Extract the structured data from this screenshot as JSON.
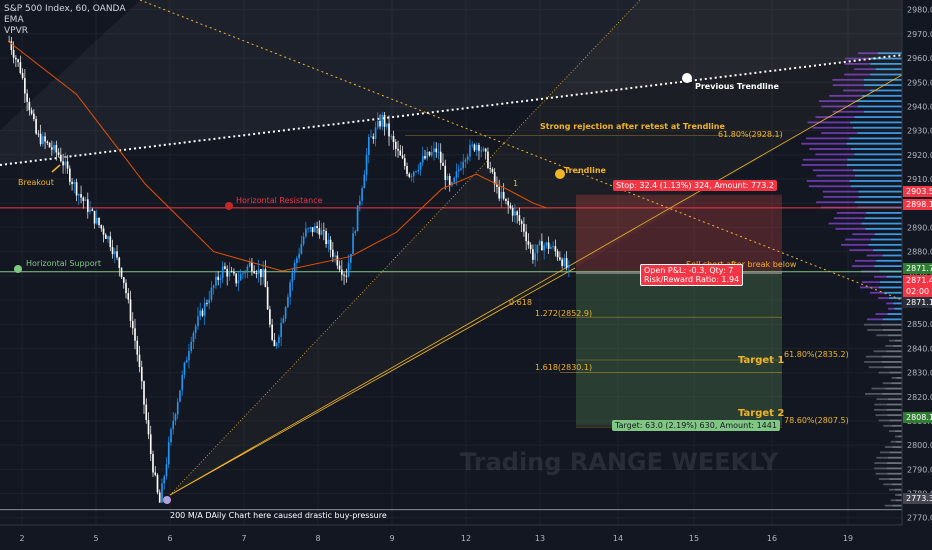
{
  "header": {
    "symbol": "S&P 500 Index, 60, OANDA",
    "indicator_1": "EMA",
    "indicator_2": "VPVR"
  },
  "watermark": "Trading RANGE WEEKLY",
  "annotations": {
    "breakout": "Breakout",
    "horizontal_support": "Horizontal Support",
    "horizontal_resistance": "Horizontal Resistance",
    "strong_rejection": "Strong rejection after retest at Trendline",
    "trendline": "Trendline",
    "previous_trendline": "Previous Trendline",
    "bottom_note": "200 M/A DAily Chart here caused drastic buy-pressure",
    "fib_0618": "0.618",
    "fib_1272": "1.272(2852.9)",
    "fib_1618": "1.618(2830.1)",
    "fib_6180_top": "61.80%(2928.1)",
    "fib_6180_mid": "61.80%(2835.2)",
    "fib_7860": "78.60%(2807.5)",
    "target_1": "Target 1",
    "target_2": "Target 2",
    "stop_box": "Stop: 32.4 (1.13%) 324, Amount: 773.2",
    "open_pl": "Open P&L: -0.3, Qty: 7",
    "risk_reward": "Risk/Reward Ratio: 1.94",
    "target_box": "Target: 63.0 (2.19%) 630, Amount: 1441",
    "short_note": "Sell short after break below"
  },
  "price_tags": {
    "p1": "2903.5",
    "p2": "2898.1",
    "p3": "2871.7",
    "p4": "2871.4",
    "p5": "02:00",
    "p6": "2871.1",
    "p7": "2808.1",
    "p8": "2773.3"
  },
  "colors": {
    "background": "#131722",
    "up_candle": "#2196f3",
    "down_candle": "#ffffff",
    "ema": "#e65100",
    "resistance": "#f23645",
    "support": "#81c784",
    "fib": "#f0b429",
    "stop_zone": "#8b3a3a",
    "target_zone": "#3b5a3b"
  },
  "chart_data": {
    "type": "candlestick",
    "title": "S&P 500 Index, 60, OANDA",
    "x_ticks": [
      "2",
      "5",
      "6",
      "7",
      "8",
      "9",
      "12",
      "13",
      "14",
      "15",
      "16",
      "19"
    ],
    "y_ticks": [
      2770,
      2780,
      2790,
      2800,
      2810,
      2820,
      2830,
      2840,
      2850,
      2860,
      2870,
      2880,
      2890,
      2900,
      2910,
      2920,
      2930,
      2940,
      2950,
      2960,
      2970,
      2980
    ],
    "ylim": [
      2767,
      2984
    ],
    "key_path": [
      [
        0,
        2967
      ],
      [
        5,
        2955
      ],
      [
        12,
        2928
      ],
      [
        22,
        2920
      ],
      [
        30,
        2905
      ],
      [
        38,
        2893
      ],
      [
        44,
        2885
      ],
      [
        50,
        2870
      ],
      [
        56,
        2840
      ],
      [
        62,
        2798
      ],
      [
        66,
        2775
      ],
      [
        72,
        2810
      ],
      [
        80,
        2845
      ],
      [
        88,
        2862
      ],
      [
        94,
        2873
      ],
      [
        100,
        2868
      ],
      [
        106,
        2875
      ],
      [
        112,
        2870
      ],
      [
        116,
        2838
      ],
      [
        120,
        2852
      ],
      [
        124,
        2870
      ],
      [
        130,
        2888
      ],
      [
        136,
        2890
      ],
      [
        142,
        2880
      ],
      [
        148,
        2870
      ],
      [
        152,
        2890
      ],
      [
        158,
        2925
      ],
      [
        164,
        2935
      ],
      [
        170,
        2922
      ],
      [
        176,
        2912
      ],
      [
        182,
        2918
      ],
      [
        188,
        2922
      ],
      [
        194,
        2905
      ],
      [
        200,
        2920
      ],
      [
        206,
        2925
      ],
      [
        210,
        2918
      ],
      [
        214,
        2906
      ],
      [
        218,
        2900
      ],
      [
        222,
        2896
      ],
      [
        226,
        2890
      ],
      [
        230,
        2878
      ],
      [
        234,
        2883
      ],
      [
        238,
        2882
      ],
      [
        242,
        2878
      ],
      [
        246,
        2872
      ]
    ],
    "ema_path": [
      [
        0,
        2967
      ],
      [
        30,
        2945
      ],
      [
        60,
        2908
      ],
      [
        90,
        2880
      ],
      [
        120,
        2872
      ],
      [
        150,
        2878
      ],
      [
        170,
        2888
      ],
      [
        190,
        2906
      ],
      [
        205,
        2912
      ],
      [
        218,
        2906
      ],
      [
        230,
        2900
      ],
      [
        236,
        2898
      ]
    ],
    "horizontal_resistance": 2898.1,
    "horizontal_support": 2871.7,
    "trade": {
      "entry": 2871.1,
      "stop": 2903.5,
      "target": 2808.1
    },
    "volume_profile_price_range": [
      2770,
      2960
    ]
  }
}
